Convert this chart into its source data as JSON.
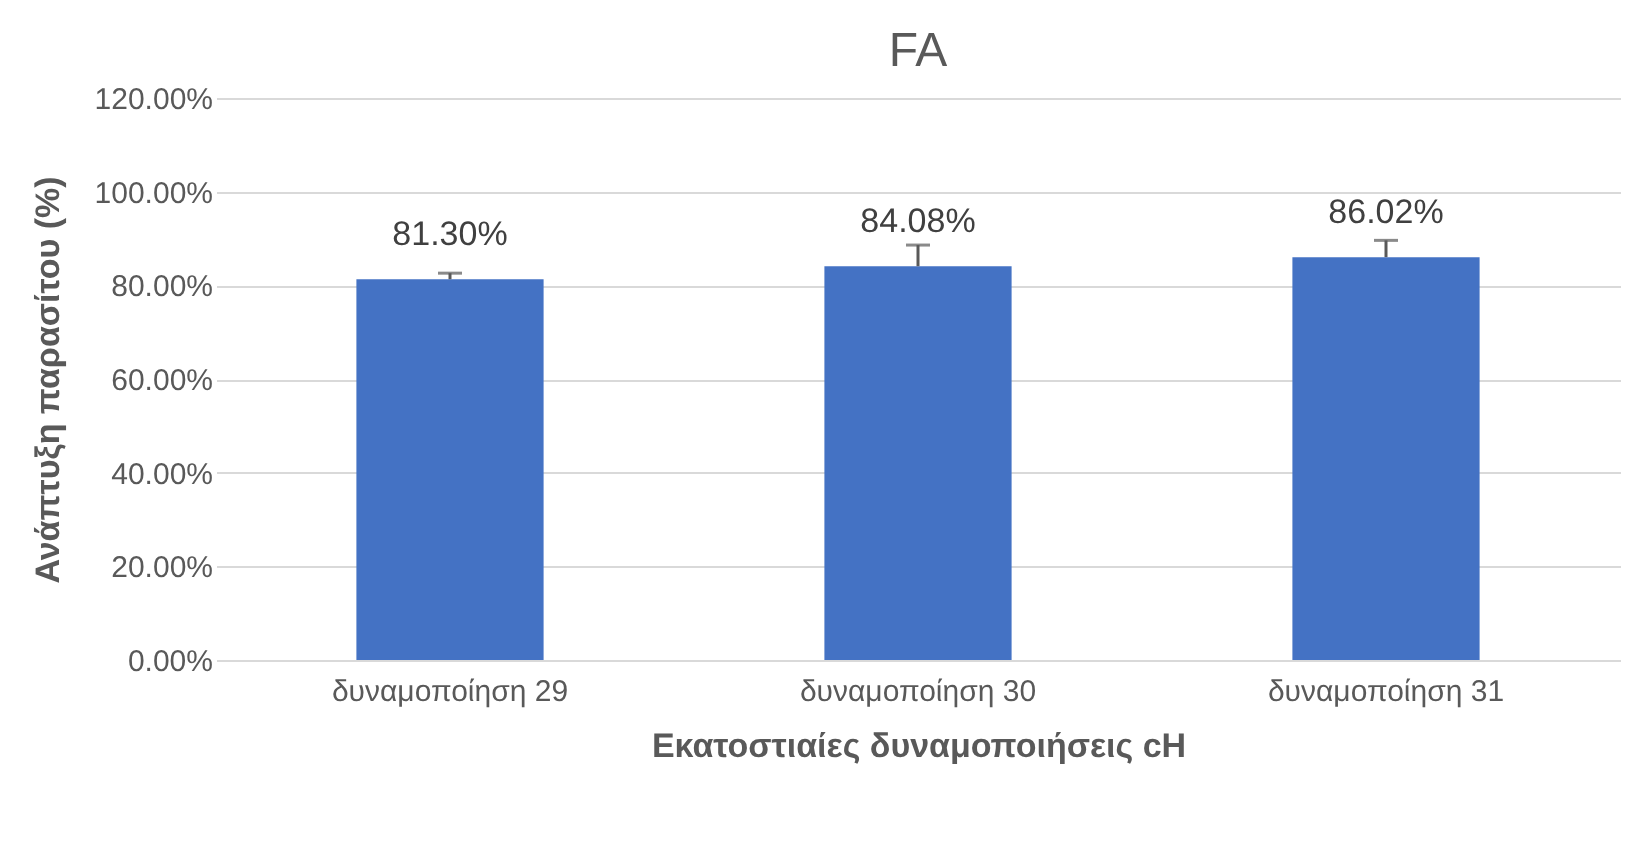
{
  "chart_data": {
    "type": "bar",
    "title": "FA",
    "xlabel": "Εκατοστιαίες δυναμοποιήσεις cH",
    "ylabel": "Ανάπτυξη παρασίτου (%)",
    "categories": [
      "δυναμοποίηση 29",
      "δυναμοποίηση 30",
      "δυναμοποίηση 31"
    ],
    "values": [
      81.3,
      84.08,
      86.02
    ],
    "color": "#4472c4",
    "errors": [
      [
        81.3,
        82.6
      ],
      [
        84.08,
        88.6
      ],
      [
        86.02,
        89.6
      ]
    ],
    "value_labels": [
      "81.30%",
      "84.08%",
      "86.02%"
    ],
    "ylim": [
      0,
      120
    ],
    "yticks": [
      {
        "value": 0,
        "label": "0.00%"
      },
      {
        "value": 20,
        "label": "20.00%"
      },
      {
        "value": 40,
        "label": "40.00%"
      },
      {
        "value": 60,
        "label": "60.00%"
      },
      {
        "value": 80,
        "label": "80.00%"
      },
      {
        "value": 100,
        "label": "100.00%"
      },
      {
        "value": 120,
        "label": "120.00%"
      }
    ],
    "grid": "y"
  }
}
